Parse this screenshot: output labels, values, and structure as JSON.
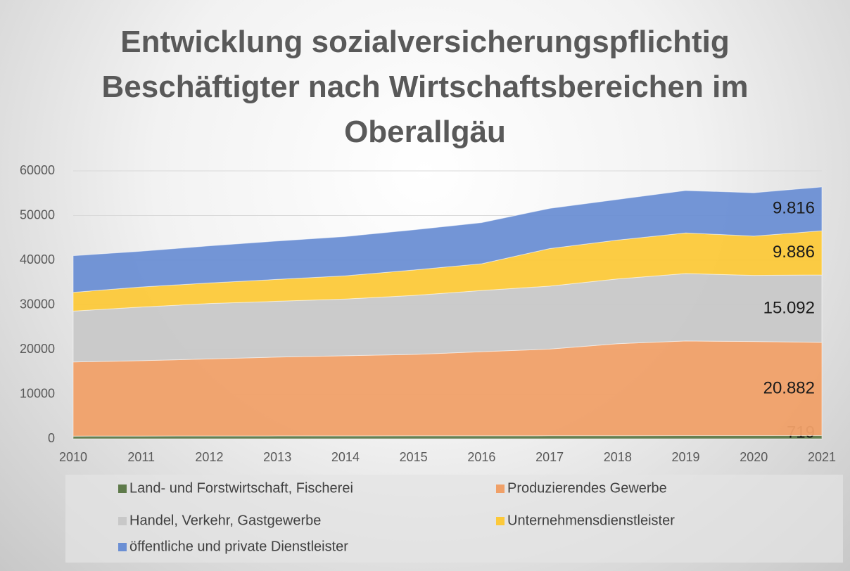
{
  "chart_data": {
    "type": "stacked_area",
    "title": "Entwicklung sozialversicherungspflichtig Beschäftigter nach Wirtschaftsbereichen im Oberallgäu",
    "x": [
      2010,
      2011,
      2012,
      2013,
      2014,
      2015,
      2016,
      2017,
      2018,
      2019,
      2020,
      2021
    ],
    "xlim": [
      2010,
      2021
    ],
    "xticks": [
      2010,
      2011,
      2012,
      2013,
      2014,
      2015,
      2016,
      2017,
      2018,
      2019,
      2020,
      2021
    ],
    "ylim": [
      0,
      60000
    ],
    "yticks": [
      0,
      10000,
      20000,
      30000,
      40000,
      50000,
      60000
    ],
    "grid": true,
    "legend": "bottom",
    "series": [
      {
        "name": "Land- und Forstwirtschaft, Fischerei",
        "color": "#5e7a4a",
        "values": [
          600,
          620,
          630,
          640,
          650,
          660,
          670,
          680,
          690,
          700,
          710,
          719
        ],
        "value_labels": [
          null,
          null,
          null,
          null,
          null,
          null,
          null,
          null,
          null,
          null,
          null,
          "719"
        ]
      },
      {
        "name": "Produzierendes Gewerbe",
        "color": "#f0a068",
        "values": [
          16600,
          16880,
          17270,
          17660,
          17950,
          18240,
          18830,
          19420,
          20610,
          21200,
          21090,
          20882
        ],
        "value_labels": [
          null,
          null,
          null,
          null,
          null,
          null,
          null,
          null,
          null,
          null,
          null,
          "20.882"
        ]
      },
      {
        "name": "Handel, Verkehr, Gastgewerbe",
        "color": "#c8c8c8",
        "values": [
          11400,
          12000,
          12400,
          12500,
          12700,
          13200,
          13700,
          14100,
          14500,
          15100,
          14800,
          15092
        ],
        "value_labels": [
          null,
          null,
          null,
          null,
          null,
          null,
          null,
          null,
          null,
          null,
          null,
          "15.092"
        ]
      },
      {
        "name": "Unternehmensdienstleister",
        "color": "#fcc93a",
        "values": [
          4200,
          4500,
          4600,
          4900,
          5200,
          5700,
          6000,
          8400,
          8700,
          9100,
          8800,
          9886
        ],
        "value_labels": [
          null,
          null,
          null,
          null,
          null,
          null,
          null,
          null,
          null,
          null,
          null,
          "9.886"
        ]
      },
      {
        "name": "öffentliche und private Dienstleister",
        "color": "#6b8fd4",
        "values": [
          8200,
          8000,
          8300,
          8600,
          8800,
          9000,
          9200,
          9000,
          9100,
          9500,
          9700,
          9816
        ],
        "value_labels": [
          null,
          null,
          null,
          null,
          null,
          null,
          null,
          null,
          null,
          null,
          null,
          "9.816"
        ]
      }
    ]
  }
}
